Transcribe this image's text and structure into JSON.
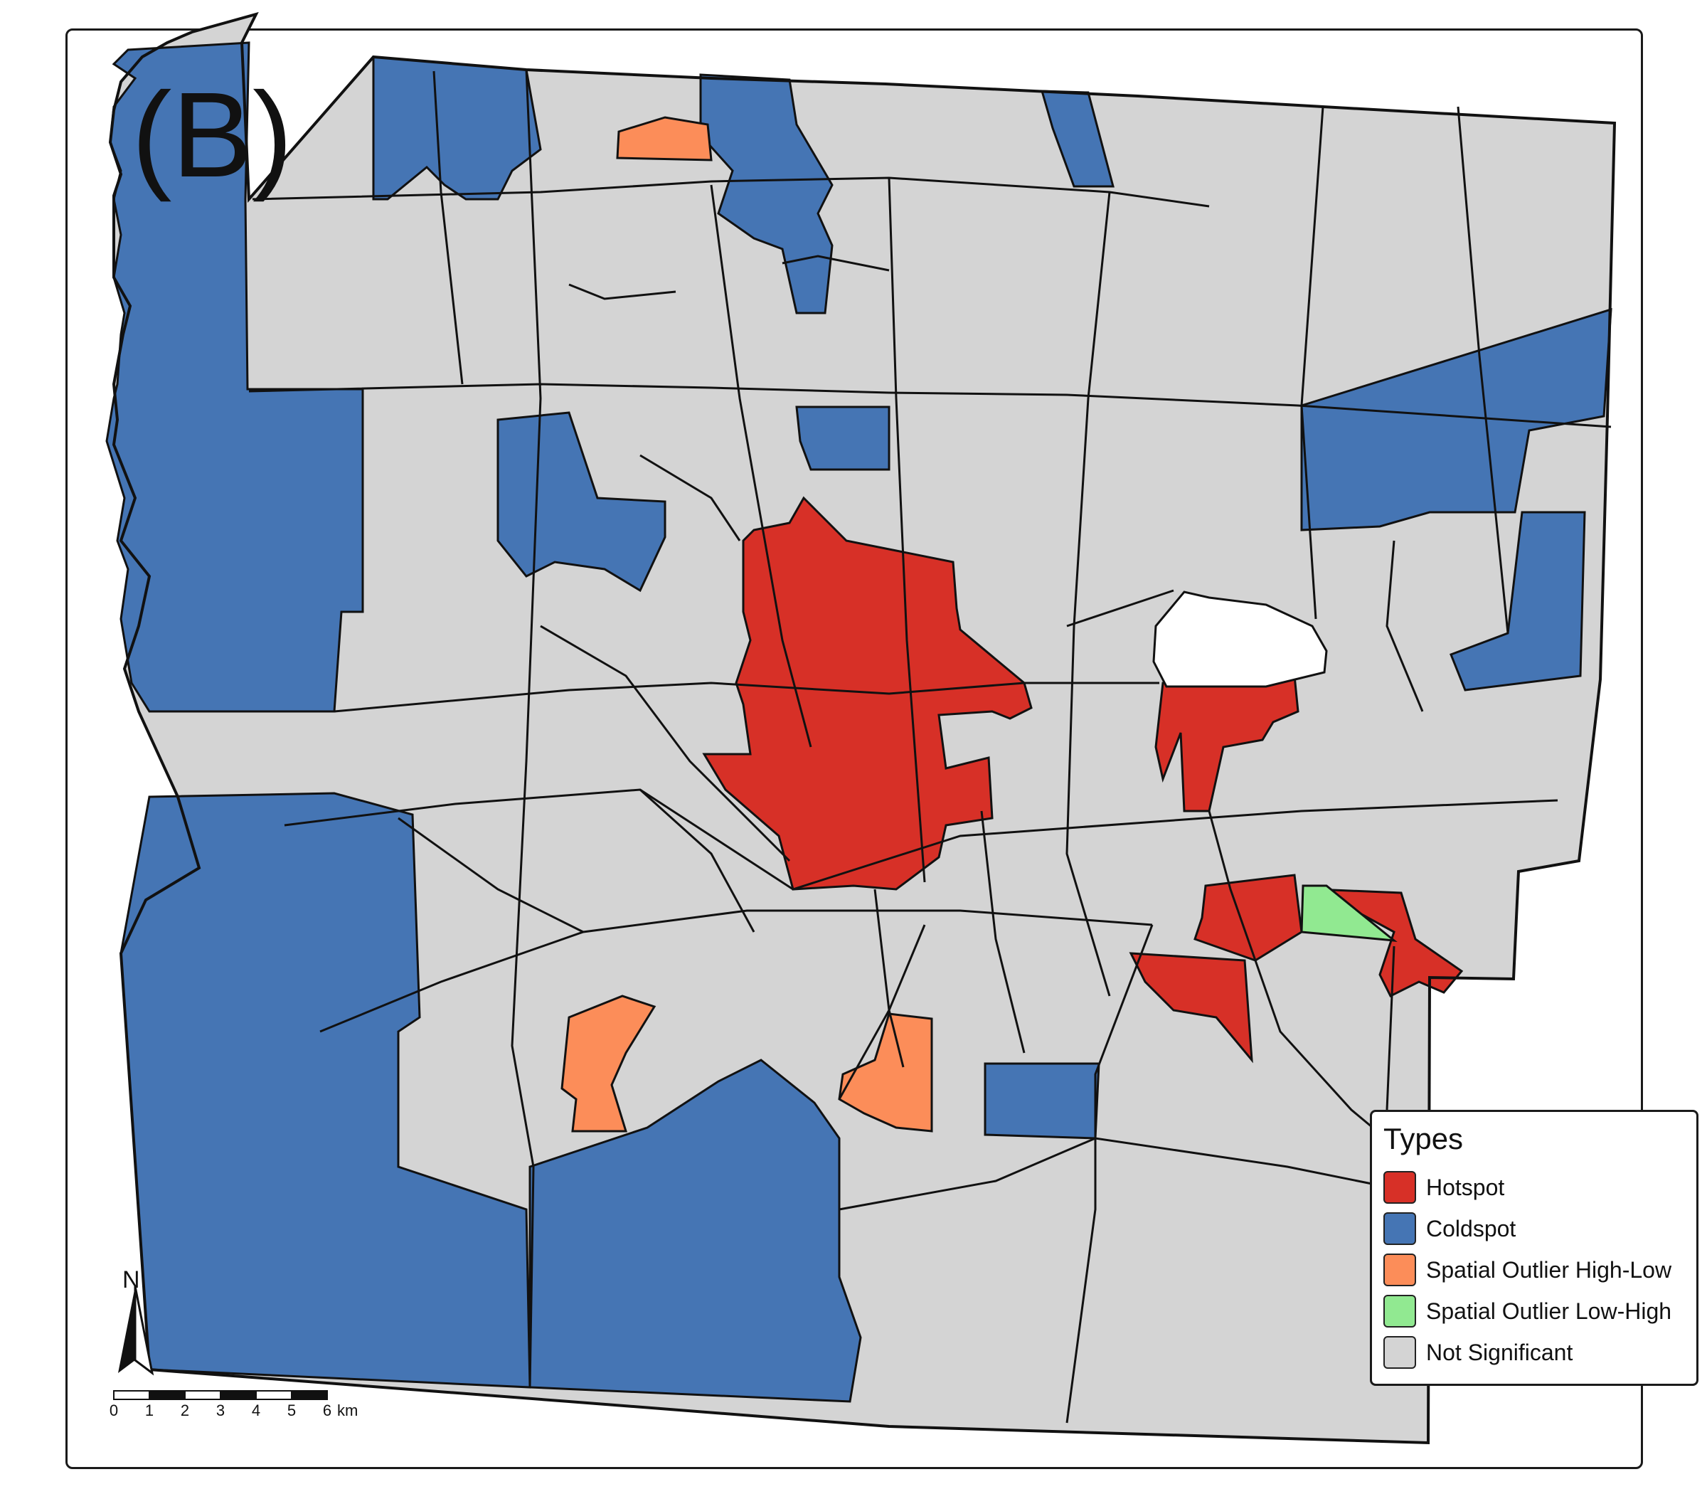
{
  "panel_label": "(B)",
  "colors": {
    "hotspot": "#d73027",
    "coldspot": "#4575b4",
    "outlier_high_low": "#fc8d59",
    "outlier_low_high": "#91e991",
    "not_significant": "#d4d4d4",
    "boundary": "#111111"
  },
  "legend": {
    "title": "Types",
    "items": [
      {
        "key": "hotspot",
        "label": "Hotspot",
        "color": "#d73027"
      },
      {
        "key": "coldspot",
        "label": "Coldspot",
        "color": "#4575b4"
      },
      {
        "key": "outlier_high_low",
        "label": "Spatial Outlier High-Low",
        "color": "#fc8d59"
      },
      {
        "key": "outlier_low_high",
        "label": "Spatial Outlier Low-High",
        "color": "#91e991"
      },
      {
        "key": "not_significant",
        "label": "Not Significant",
        "color": "#d4d4d4"
      }
    ]
  },
  "north_arrow": {
    "label": "N",
    "icon": "north-arrow-icon"
  },
  "scale_bar": {
    "ticks": [
      "0",
      "1",
      "2",
      "3",
      "4",
      "5",
      "6"
    ],
    "unit": "km"
  }
}
